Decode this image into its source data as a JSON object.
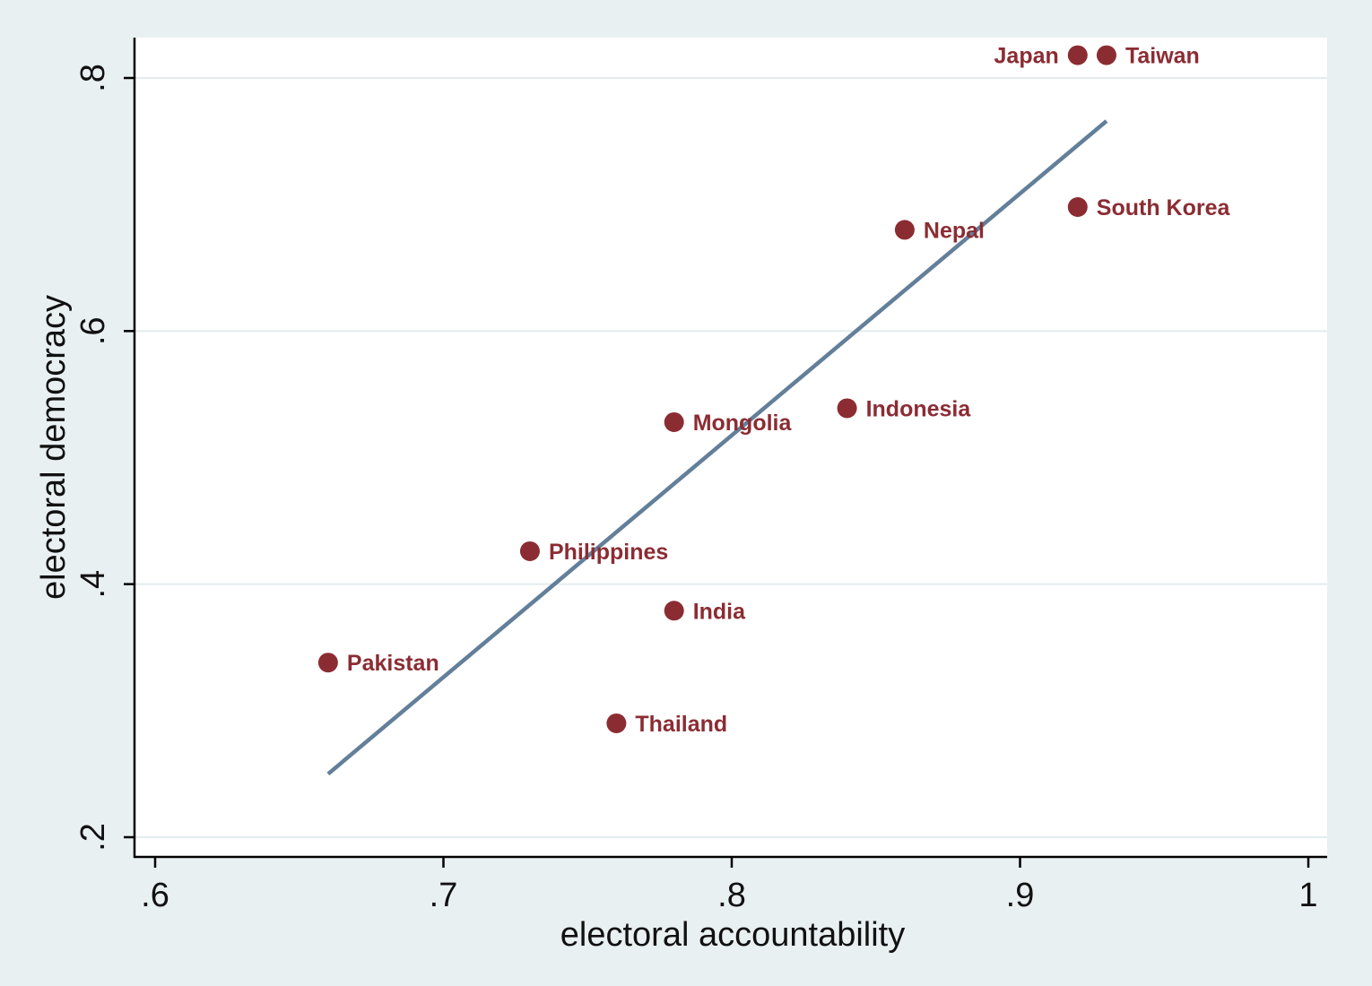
{
  "chart_data": {
    "type": "scatter",
    "title": "",
    "xlabel": "electoral accountability",
    "ylabel": "electoral democracy",
    "xlim": [
      0.6,
      1.0
    ],
    "ylim": [
      0.2,
      0.8
    ],
    "x_ticks": [
      0.6,
      0.7,
      0.8,
      0.9,
      1.0
    ],
    "x_tick_labels": [
      ".6",
      ".7",
      ".8",
      ".9",
      "1"
    ],
    "y_ticks": [
      0.2,
      0.4,
      0.6,
      0.8
    ],
    "y_tick_labels": [
      ".2",
      ".4",
      ".6",
      ".8"
    ],
    "grid": "horizontal",
    "legend": "none",
    "points": [
      {
        "label": "Japan",
        "x": 0.92,
        "y": 0.818,
        "label_side": "left"
      },
      {
        "label": "Taiwan",
        "x": 0.93,
        "y": 0.818,
        "label_side": "right"
      },
      {
        "label": "South Korea",
        "x": 0.92,
        "y": 0.698,
        "label_side": "right"
      },
      {
        "label": "Nepal",
        "x": 0.86,
        "y": 0.68,
        "label_side": "right"
      },
      {
        "label": "Indonesia",
        "x": 0.84,
        "y": 0.539,
        "label_side": "right"
      },
      {
        "label": "Mongolia",
        "x": 0.78,
        "y": 0.528,
        "label_side": "right"
      },
      {
        "label": "Philippines",
        "x": 0.73,
        "y": 0.426,
        "label_side": "right"
      },
      {
        "label": "India",
        "x": 0.78,
        "y": 0.379,
        "label_side": "right"
      },
      {
        "label": "Pakistan",
        "x": 0.66,
        "y": 0.338,
        "label_side": "right"
      },
      {
        "label": "Thailand",
        "x": 0.76,
        "y": 0.29,
        "label_side": "right"
      }
    ],
    "fit_line": {
      "x": [
        0.66,
        0.93
      ],
      "y": [
        0.25,
        0.766
      ]
    },
    "colors": {
      "background": "#e9f0f2",
      "plot_area": "#ffffff",
      "points": "#8b2c33",
      "fit_line": "#637f99",
      "grid": "#e4ebee"
    }
  }
}
